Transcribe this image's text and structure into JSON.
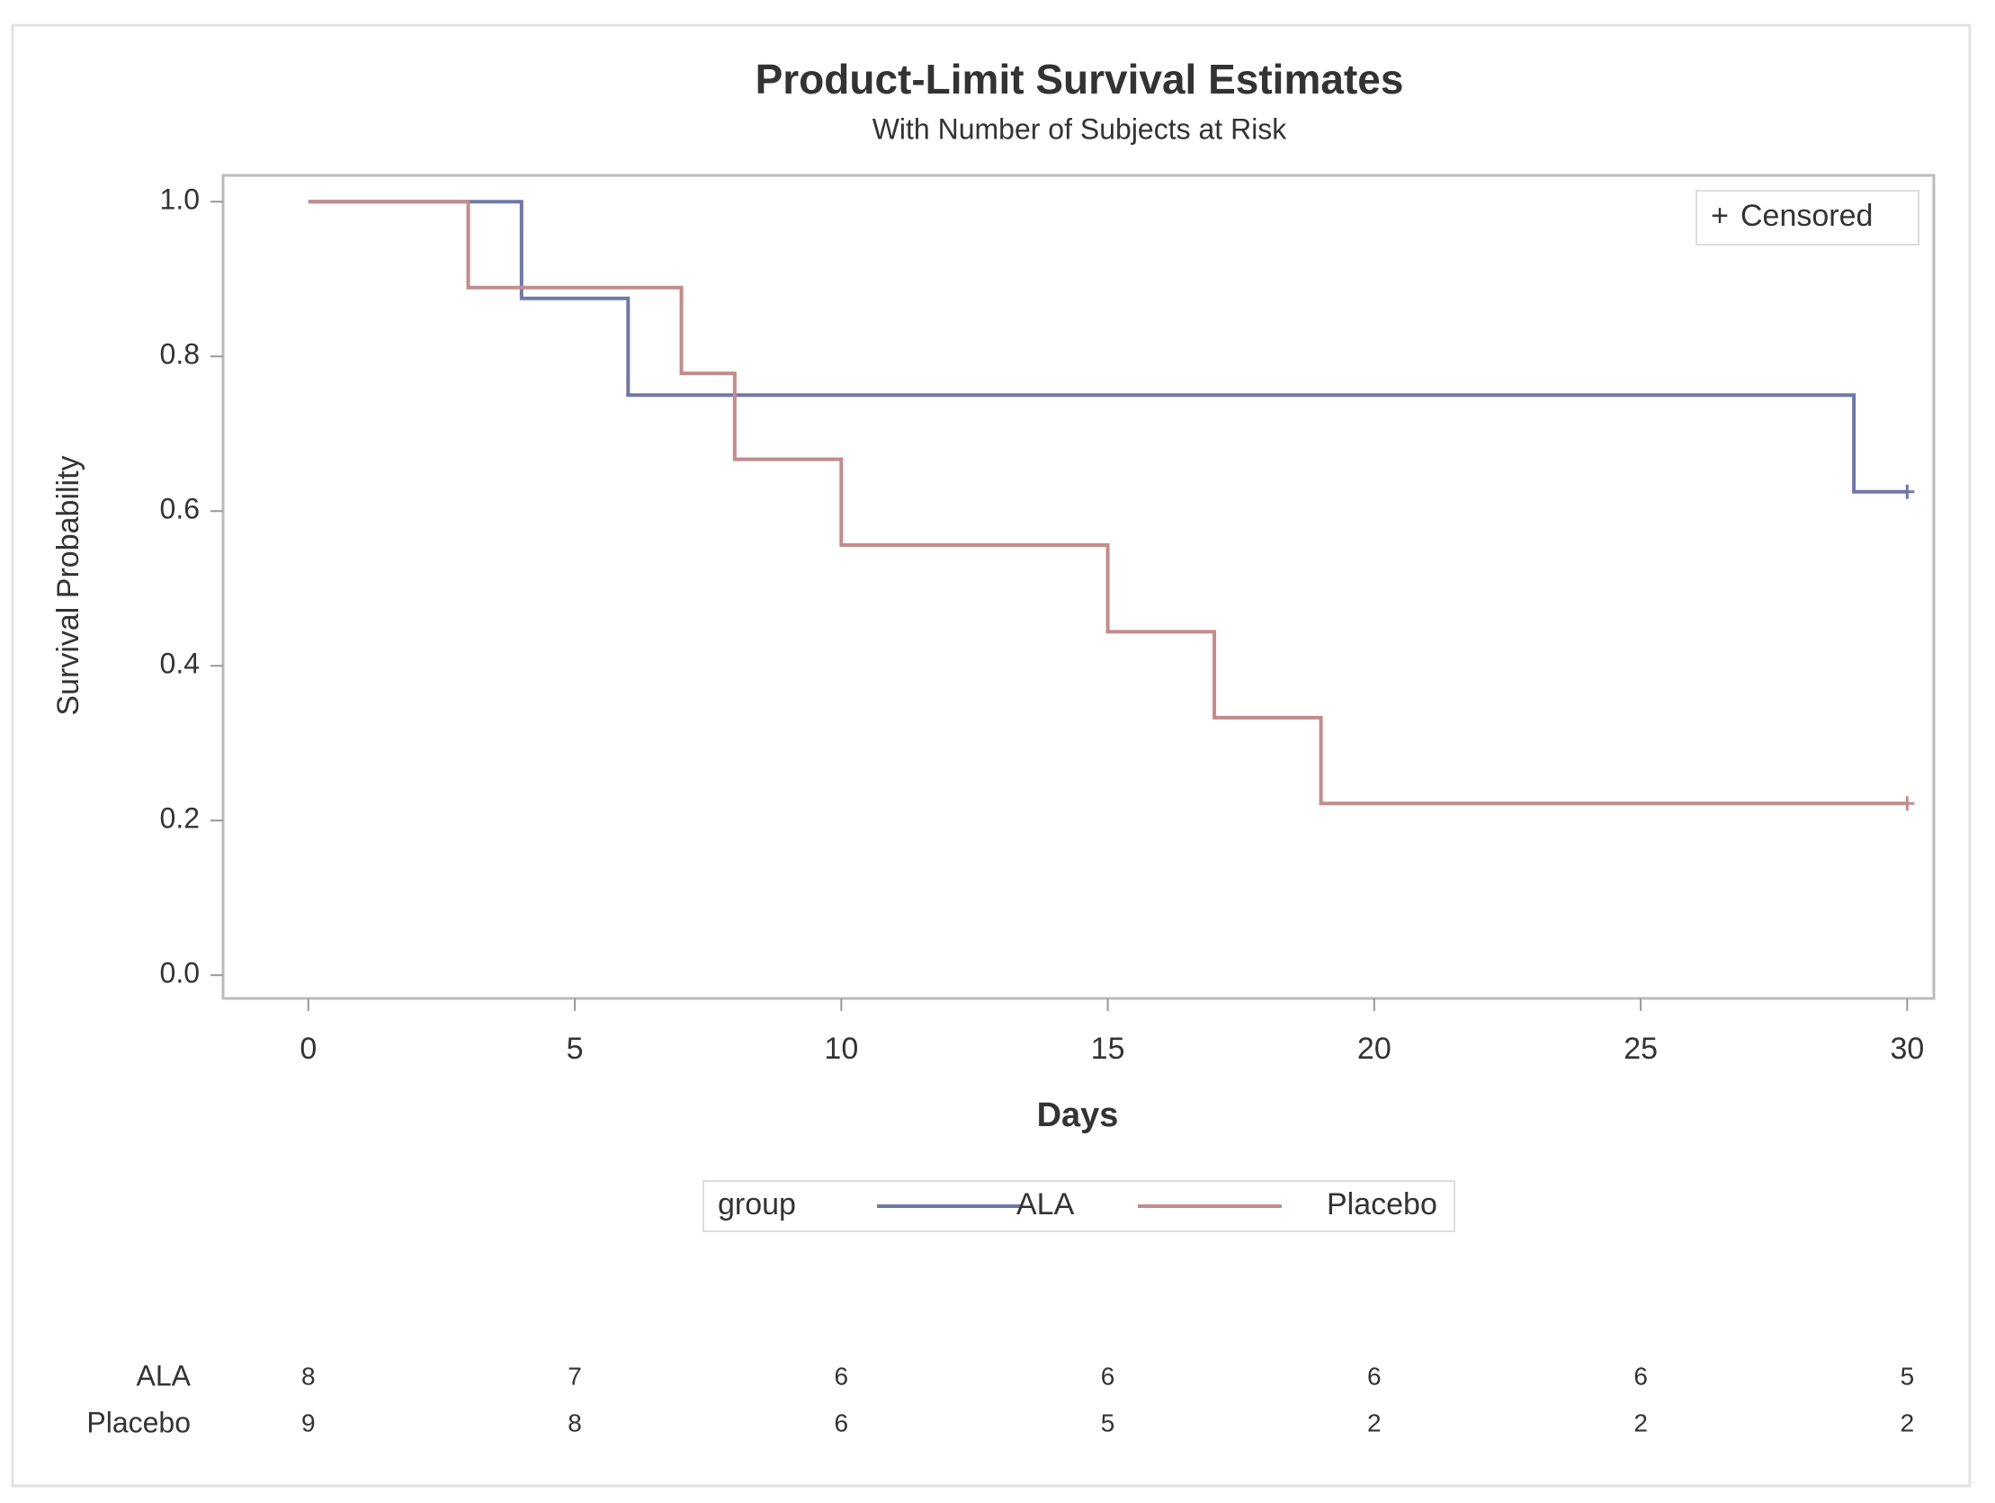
{
  "chart_data": {
    "type": "step",
    "title": "Product-Limit Survival Estimates",
    "subtitle": "With Number of Subjects at Risk",
    "x_label": "Days",
    "y_label": "Survival Probability",
    "xlim": [
      -1.6,
      30.5
    ],
    "xticks": [
      0,
      5,
      10,
      15,
      20,
      25,
      30
    ],
    "ylim": [
      -0.03,
      1.034
    ],
    "yticks": [
      {
        "value": 0,
        "label": "0.0"
      },
      0.2,
      0.4,
      0.6,
      0.8,
      {
        "value": 1,
        "label": "1.0"
      }
    ],
    "legend_title": "group",
    "censored_label": "Censored",
    "series": [
      {
        "name": "ALA",
        "color": "#6f78a6",
        "x": [
          0,
          4,
          6,
          29,
          30
        ],
        "values": [
          1,
          0.875,
          0.75,
          0.625,
          0.625
        ],
        "at_risk": [
          8,
          7,
          6,
          6,
          6,
          6,
          5
        ]
      },
      {
        "name": "Placebo",
        "color": "#c28c8c",
        "x": [
          0,
          3,
          7,
          8,
          10,
          15,
          17,
          19,
          30
        ],
        "values": [
          1,
          0.889,
          0.778,
          0.667,
          0.556,
          0.444,
          0.333,
          0.222,
          0.222
        ],
        "at_risk": [
          9,
          8,
          6,
          5,
          2,
          2,
          2
        ]
      }
    ]
  }
}
